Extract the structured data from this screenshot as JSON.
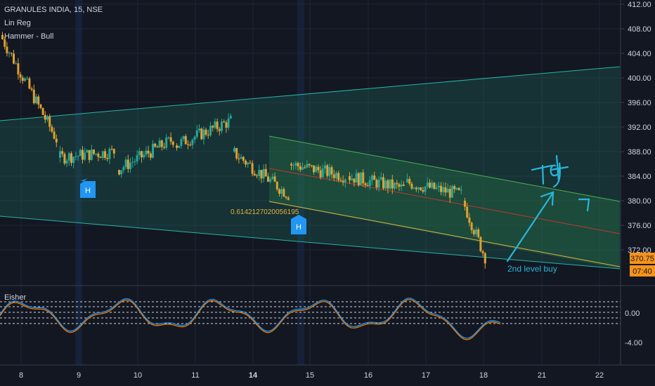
{
  "legend": {
    "symbol": "GRANULES INDIA, 15, NSE",
    "indicator1": "Lin Reg",
    "indicator2": "Hammer - Bull",
    "sub_indicator": "Eisher"
  },
  "colors": {
    "background": "#131722",
    "up_candle": "#26a69a",
    "down_candle": "#e0a030",
    "channel_line": "#26b5a5",
    "channel_fill": "#1e6b5e",
    "mid_line": "#c0392b",
    "yellow_line": "#e0b341",
    "annotation": "#29b6d8",
    "hammer_badge": "#2196f3",
    "price_badge": "#f7931a",
    "fisher_blue": "#2196f3",
    "fisher_orange": "#f57c00"
  },
  "price_axis": {
    "labels": [
      "412.00",
      "408.00",
      "404.00",
      "400.00",
      "396.00",
      "392.00",
      "388.00",
      "384.00",
      "380.00",
      "376.00",
      "372.00"
    ],
    "current_price": "370.75",
    "countdown": "07:40"
  },
  "fisher_axis": {
    "labels": [
      "0.00",
      "-4.00"
    ]
  },
  "time_axis": {
    "labels": [
      "8",
      "9",
      "10",
      "11",
      "14",
      "15",
      "16",
      "17",
      "18",
      "21",
      "22"
    ]
  },
  "annotations": {
    "regression_value": "0.6142127020056195",
    "hammer_label": "H",
    "buy_note": "2nd level buy",
    "target_note": "Tgt"
  },
  "chart_data": {
    "type": "candlestick",
    "title": "GRANULES INDIA, 15, NSE",
    "ylim": [
      368,
      413
    ],
    "series": [
      {
        "name": "Lin Reg",
        "points": [
          {
            "x": "8",
            "y": 393
          },
          {
            "x": "22",
            "y": 401.5
          }
        ]
      },
      {
        "name": "Lin Reg lower",
        "points": [
          {
            "x": "8",
            "y": 378
          },
          {
            "x": "22",
            "y": 370
          }
        ]
      }
    ],
    "days": [
      {
        "day": "8",
        "open": 407,
        "close": 390,
        "high": 408,
        "low": 386
      },
      {
        "day": "9",
        "open": 387,
        "close": 388,
        "high": 394,
        "low": 383
      },
      {
        "day": "10",
        "open": 385,
        "close": 390,
        "high": 392,
        "low": 376
      },
      {
        "day": "11",
        "open": 389,
        "close": 393,
        "high": 397,
        "low": 386
      },
      {
        "day": "14",
        "open": 388,
        "close": 381,
        "high": 389,
        "low": 379
      },
      {
        "day": "15",
        "open": 386,
        "close": 384,
        "high": 388,
        "low": 381
      },
      {
        "day": "16",
        "open": 384,
        "close": 382,
        "high": 387,
        "low": 381
      },
      {
        "day": "17",
        "open": 383,
        "close": 381,
        "high": 386,
        "low": 380
      },
      {
        "day": "18",
        "open": 380,
        "close": 370.75,
        "high": 381,
        "low": 369.5
      }
    ]
  }
}
